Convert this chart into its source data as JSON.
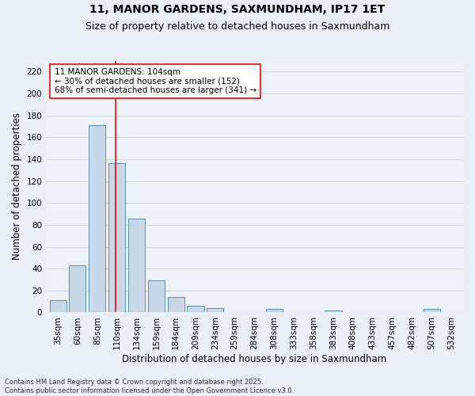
{
  "title": "11, MANOR GARDENS, SAXMUNDHAM, IP17 1ET",
  "subtitle": "Size of property relative to detached houses in Saxmundham",
  "xlabel": "Distribution of detached houses by size in Saxmundham",
  "ylabel": "Number of detached properties",
  "footnote": "Contains HM Land Registry data © Crown copyright and database right 2025.\nContains public sector information licensed under the Open Government Licence v3.0.",
  "bar_labels": [
    "35sqm",
    "60sqm",
    "85sqm",
    "110sqm",
    "134sqm",
    "159sqm",
    "184sqm",
    "209sqm",
    "234sqm",
    "259sqm",
    "284sqm",
    "308sqm",
    "333sqm",
    "358sqm",
    "383sqm",
    "408sqm",
    "433sqm",
    "457sqm",
    "482sqm",
    "507sqm",
    "532sqm"
  ],
  "bar_values": [
    11,
    43,
    171,
    136,
    86,
    29,
    14,
    6,
    4,
    0,
    0,
    3,
    0,
    0,
    2,
    0,
    0,
    0,
    0,
    3,
    0
  ],
  "bar_color": "#c8d8e8",
  "bar_edge_color": "#5b8db8",
  "annotation_text": "11 MANOR GARDENS: 104sqm\n← 30% of detached houses are smaller (152)\n68% of semi-detached houses are larger (341) →",
  "vline_x": 2.92,
  "vline_color": "red",
  "ylim": [
    0,
    230
  ],
  "yticks": [
    0,
    20,
    40,
    60,
    80,
    100,
    120,
    140,
    160,
    180,
    200,
    220
  ],
  "bg_color": "#eaf0f8",
  "plot_bg_color": "#eef3fa",
  "grid_color": "#c5cfdc",
  "title_fontsize": 10,
  "subtitle_fontsize": 9,
  "axis_label_fontsize": 8.5,
  "tick_fontsize": 7.5,
  "annotation_fontsize": 7.5
}
